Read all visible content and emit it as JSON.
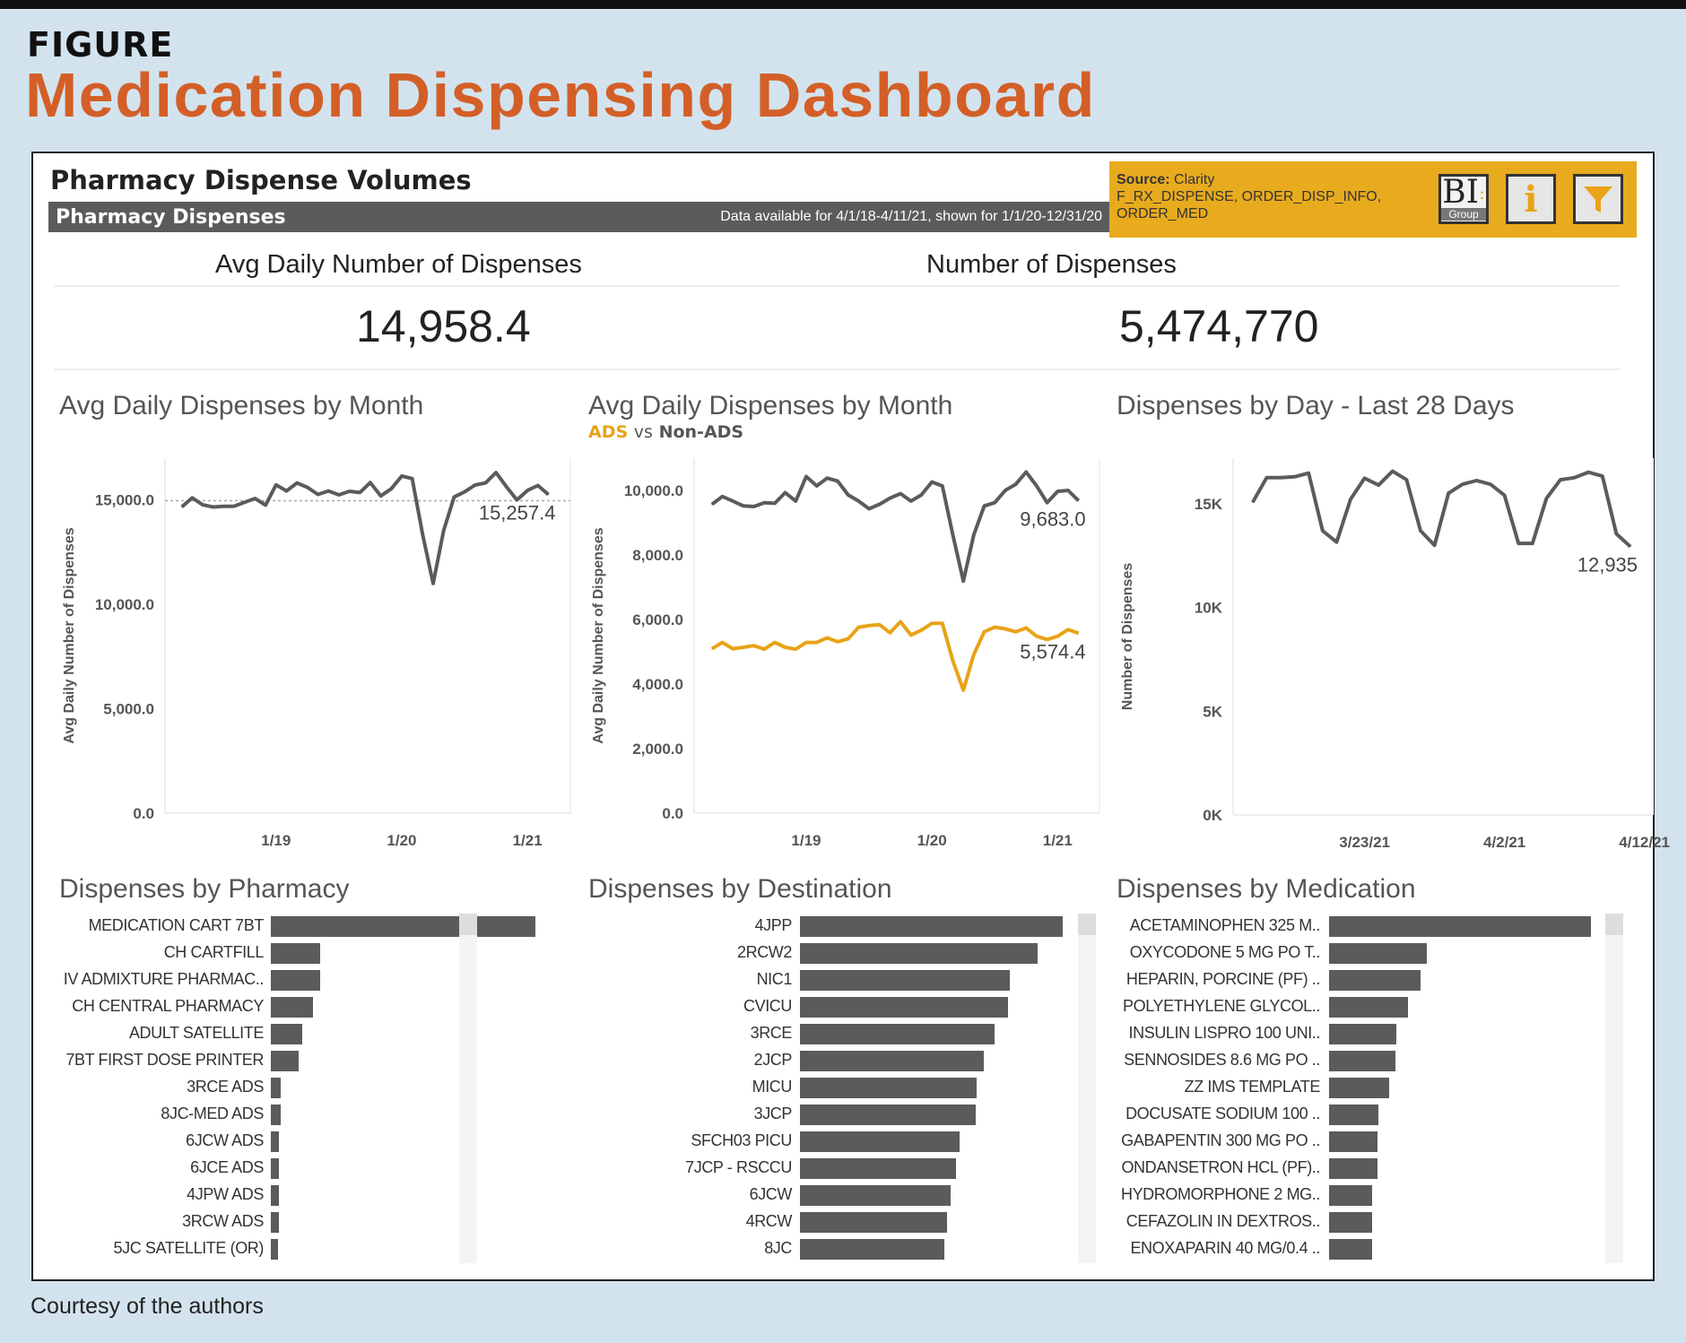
{
  "figure_label": "FIGURE",
  "figure_title": "Medication Dispensing Dashboard",
  "courtesy": "Courtesy of the authors",
  "dashboard": {
    "title": "Pharmacy Dispense Volumes",
    "subbar_title": "Pharmacy Dispenses",
    "subbar_note": "Data available for 4/1/18-4/11/21, shown for 1/1/20-12/31/20",
    "source_label": "Source:",
    "source_value": "Clarity",
    "source_tables_1": "F_RX_DISPENSE, ORDER_DISP_INFO,",
    "source_tables_2": "ORDER_MED",
    "buttons": {
      "bi_main": "BI",
      "bi_sub": "Group",
      "info": "i",
      "filter_icon": "filter-icon"
    },
    "colors": {
      "accent": "#e8ab1e",
      "title": "#d35f27",
      "dark": "#5b5b5b",
      "ads": "#e8a317"
    }
  },
  "kpis": [
    {
      "title": "Avg Daily Number of Dispenses",
      "value": "14,958.4"
    },
    {
      "title": "Number of Dispenses",
      "value": "5,474,770"
    }
  ],
  "chart_data": [
    {
      "type": "line",
      "title": "Avg Daily Dispenses by Month",
      "ylabel": "Avg Daily Number of Dispenses",
      "ylim": [
        0,
        17000
      ],
      "yticks": [
        "0.0",
        "5,000.0",
        "10,000.0",
        "15,000.0"
      ],
      "ytick_values": [
        0,
        5000,
        10000,
        15000
      ],
      "xtick_labels": [
        "1/19",
        "1/20",
        "1/21"
      ],
      "xtick_positions": [
        "1/19",
        "1/20",
        "1/21"
      ],
      "reference_line": 14958.4,
      "x": [
        "4/18",
        "5/18",
        "6/18",
        "7/18",
        "8/18",
        "9/18",
        "10/18",
        "11/18",
        "12/18",
        "1/19",
        "2/19",
        "3/19",
        "4/19",
        "5/19",
        "6/19",
        "7/19",
        "8/19",
        "9/19",
        "10/19",
        "11/19",
        "12/19",
        "1/20",
        "2/20",
        "3/20",
        "4/20",
        "5/20",
        "6/20",
        "7/20",
        "8/20",
        "9/20",
        "10/20",
        "11/20",
        "12/20",
        "1/21",
        "2/21",
        "3/21"
      ],
      "series": [
        {
          "color": "#5b5b5b",
          "end_label": "15,257.4",
          "values": [
            14665,
            15100,
            14765,
            14660,
            14690,
            14700,
            14890,
            15070,
            14750,
            15720,
            15430,
            15810,
            15600,
            15260,
            15430,
            15240,
            15410,
            15350,
            15830,
            15190,
            15530,
            16140,
            16020,
            13340,
            11000,
            13530,
            15140,
            15380,
            15710,
            15810,
            16310,
            15620,
            15000,
            15450,
            15690,
            15257.4
          ]
        }
      ],
      "grid": false
    },
    {
      "type": "line",
      "title": "Avg Daily Dispenses by Month",
      "subtitle_a": "ADS",
      "subtitle_vs": "vs",
      "subtitle_b": "Non-ADS",
      "ylabel": "Avg Daily Number of Dispenses",
      "ylim": [
        0,
        11000
      ],
      "yticks": [
        "0.0",
        "2,000.0",
        "4,000.0",
        "6,000.0",
        "8,000.0",
        "10,000.0"
      ],
      "ytick_values": [
        0,
        2000,
        4000,
        6000,
        8000,
        10000
      ],
      "xtick_labels": [
        "1/19",
        "1/20",
        "1/21"
      ],
      "xtick_positions": [
        "1/19",
        "1/20",
        "1/21"
      ],
      "x": [
        "4/18",
        "5/18",
        "6/18",
        "7/18",
        "8/18",
        "9/18",
        "10/18",
        "11/18",
        "12/18",
        "1/19",
        "2/19",
        "3/19",
        "4/19",
        "5/19",
        "6/19",
        "7/19",
        "8/19",
        "9/19",
        "10/19",
        "11/19",
        "12/19",
        "1/20",
        "2/20",
        "3/20",
        "4/20",
        "5/20",
        "6/20",
        "7/20",
        "8/20",
        "9/20",
        "10/20",
        "11/20",
        "12/20",
        "1/21",
        "2/21",
        "3/21"
      ],
      "series": [
        {
          "name": "Non-ADS",
          "color": "#5b5b5b",
          "end_label": "9,683.0",
          "values": [
            9570,
            9810,
            9670,
            9520,
            9500,
            9620,
            9600,
            9930,
            9670,
            10430,
            10140,
            10380,
            10290,
            9860,
            9670,
            9430,
            9570,
            9760,
            9900,
            9670,
            9860,
            10260,
            10140,
            8620,
            7190,
            8620,
            9520,
            9620,
            10000,
            10190,
            10570,
            10140,
            9620,
            9970,
            10000,
            9683.0
          ]
        },
        {
          "name": "ADS",
          "color": "#e8a317",
          "end_label": "5,574.4",
          "values": [
            5095,
            5290,
            5095,
            5140,
            5190,
            5080,
            5290,
            5140,
            5080,
            5290,
            5290,
            5430,
            5310,
            5400,
            5760,
            5810,
            5840,
            5590,
            5930,
            5520,
            5670,
            5880,
            5880,
            4720,
            3810,
            4910,
            5620,
            5760,
            5710,
            5620,
            5740,
            5480,
            5380,
            5480,
            5690,
            5574.4
          ]
        }
      ],
      "grid": false
    },
    {
      "type": "line",
      "title": "Dispenses by Day - Last 28 Days",
      "ylabel": "Number of Dispenses",
      "ylim": [
        0,
        17200
      ],
      "yticks": [
        "0K",
        "5K",
        "10K",
        "15K"
      ],
      "ytick_values": [
        0,
        5000,
        10000,
        15000
      ],
      "xtick_labels": [
        "3/23/21",
        "4/2/21",
        "4/12/21"
      ],
      "xtick_positions": [
        "3/23/21",
        "4/2/21",
        "4/12/21"
      ],
      "x": [
        "3/15/21",
        "3/16/21",
        "3/17/21",
        "3/18/21",
        "3/19/21",
        "3/20/21",
        "3/21/21",
        "3/22/21",
        "3/23/21",
        "3/24/21",
        "3/25/21",
        "3/26/21",
        "3/27/21",
        "3/28/21",
        "3/29/21",
        "3/30/21",
        "3/31/21",
        "4/1/21",
        "4/2/21",
        "4/3/21",
        "4/4/21",
        "4/5/21",
        "4/6/21",
        "4/7/21",
        "4/8/21",
        "4/9/21",
        "4/10/21",
        "4/11/21"
      ],
      "series": [
        {
          "color": "#5b5b5b",
          "end_label": "12,935",
          "values": [
            15070,
            16260,
            16260,
            16300,
            16480,
            13700,
            13150,
            15220,
            16230,
            15900,
            16570,
            16160,
            13700,
            13000,
            15510,
            15940,
            16120,
            15940,
            15410,
            13090,
            13090,
            15260,
            16160,
            16260,
            16520,
            16330,
            13550,
            12935
          ]
        }
      ],
      "grid": false
    },
    {
      "type": "bar",
      "orientation": "horizontal",
      "title": "Dispenses by Pharmacy",
      "value_scale": "relative (% of largest bar; no axis shown)",
      "categories": [
        "MEDICATION CART 7BT",
        "CH CARTFILL",
        "IV ADMIXTURE PHARMAC..",
        "CH CENTRAL PHARMACY",
        "ADULT SATELLITE",
        "7BT FIRST DOSE PRINTER",
        "3RCE ADS",
        "8JC-MED ADS",
        "6JCW ADS",
        "6JCE ADS",
        "4JPW ADS",
        "3RCW ADS",
        "5JC SATELLITE (OR)"
      ],
      "values": [
        100,
        18.8,
        18.8,
        16,
        11.9,
        10.4,
        3.6,
        3.6,
        3.1,
        3.1,
        3.1,
        2.9,
        2.6
      ]
    },
    {
      "type": "bar",
      "orientation": "horizontal",
      "title": "Dispenses by Destination",
      "value_scale": "relative (% of largest bar; no axis shown)",
      "categories": [
        "4JPP",
        "2RCW2",
        "NIC1",
        "CVICU",
        "3RCE",
        "2JCP",
        "MICU",
        "3JCP",
        "SFCH03 PICU",
        "7JCP - RSCCU",
        "6JCW",
        "4RCW",
        "8JC"
      ],
      "values": [
        100,
        90.6,
        79.9,
        79.1,
        74.2,
        70.1,
        67.2,
        66.8,
        60.7,
        59.4,
        57.4,
        56.1,
        54.9
      ]
    },
    {
      "type": "bar",
      "orientation": "horizontal",
      "title": "Dispenses by Medication",
      "value_scale": "relative (% of largest bar; no axis shown)",
      "categories": [
        "ACETAMINOPHEN 325 M..",
        "OXYCODONE 5 MG PO T..",
        "HEPARIN, PORCINE (PF) ..",
        "POLYETHYLENE GLYCOL..",
        "INSULIN LISPRO 100 UNI..",
        "SENNOSIDES 8.6 MG PO ..",
        "ZZ IMS TEMPLATE",
        "DOCUSATE SODIUM 100 ..",
        "GABAPENTIN 300 MG PO ..",
        "ONDANSETRON HCL (PF)..",
        "HYDROMORPHONE 2 MG..",
        "CEFAZOLIN IN DEXTROS..",
        "ENOXAPARIN 40 MG/0.4 .."
      ],
      "values": [
        100,
        37.4,
        34.9,
        30,
        25.8,
        25.4,
        23.1,
        18.9,
        18.4,
        18.4,
        16.6,
        16.3,
        16.3
      ]
    }
  ]
}
